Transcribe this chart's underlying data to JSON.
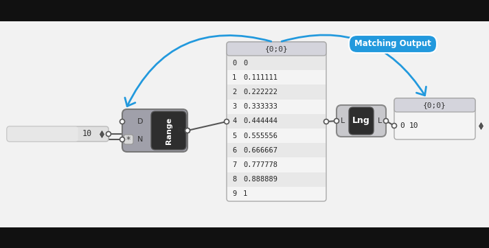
{
  "arrow_color": "#2299dd",
  "matching_output_label": "Matching Output",
  "matching_output_bg": "#2299dd",
  "range_values_idx": [
    "0",
    "1",
    "2",
    "3",
    "4",
    "5",
    "6",
    "7",
    "8",
    "9"
  ],
  "range_values_val": [
    "0",
    "0.111111",
    "0.222222",
    "0.333333",
    "0.444444",
    "0.555556",
    "0.666667",
    "0.777778",
    "0.888889",
    "1"
  ],
  "list_header": "{0;0}",
  "output_header": "{0;0}",
  "output_idx": "0",
  "output_val": "10",
  "slider_value": "10",
  "range_node_label": "Range",
  "lng_node_label": "Lng",
  "node_bg": "#a0a0aa",
  "node_dark": "#2e2e2e",
  "node_light": "#c8c8cc",
  "panel_bg": "#f4f4f4",
  "panel_header_bg": "#d4d4dc",
  "panel_ec": "#aaaaaa",
  "connector_fc": "#ffffff",
  "connector_ec": "#666666",
  "wire_color": "#555555",
  "star_bg": "#d8d8d8",
  "slider_bg": "#e0e0e0",
  "slider_ec": "#bbbbbb"
}
